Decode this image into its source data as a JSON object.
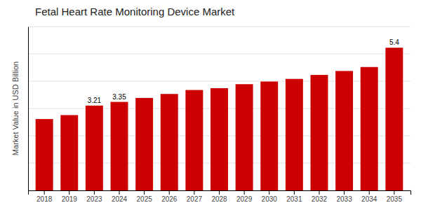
{
  "chart_data": {
    "type": "bar",
    "title": "Fetal Heart Rate Monitoring Device Market",
    "ylabel": "Market Value in USD Billion",
    "categories": [
      "2018",
      "2019",
      "2023",
      "2024",
      "2025",
      "2026",
      "2027",
      "2028",
      "2029",
      "2030",
      "2031",
      "2032",
      "2033",
      "2034",
      "2035"
    ],
    "values": [
      2.7,
      2.85,
      3.21,
      3.35,
      3.5,
      3.65,
      3.8,
      3.87,
      4.02,
      4.12,
      4.22,
      4.37,
      4.52,
      4.67,
      5.4
    ],
    "value_labels": [
      null,
      null,
      "3.21",
      "3.35",
      null,
      null,
      null,
      null,
      null,
      null,
      null,
      null,
      null,
      null,
      "5.4"
    ],
    "data_labels": true,
    "color": "#CC0000",
    "ylim": [
      0,
      6.2
    ],
    "yticks": [
      0,
      1.0333333333333334,
      2.066666666666667,
      3.1,
      4.133333333333334,
      5.166666666666667,
      6.2
    ],
    "grid": true,
    "tick_labels": "x"
  }
}
